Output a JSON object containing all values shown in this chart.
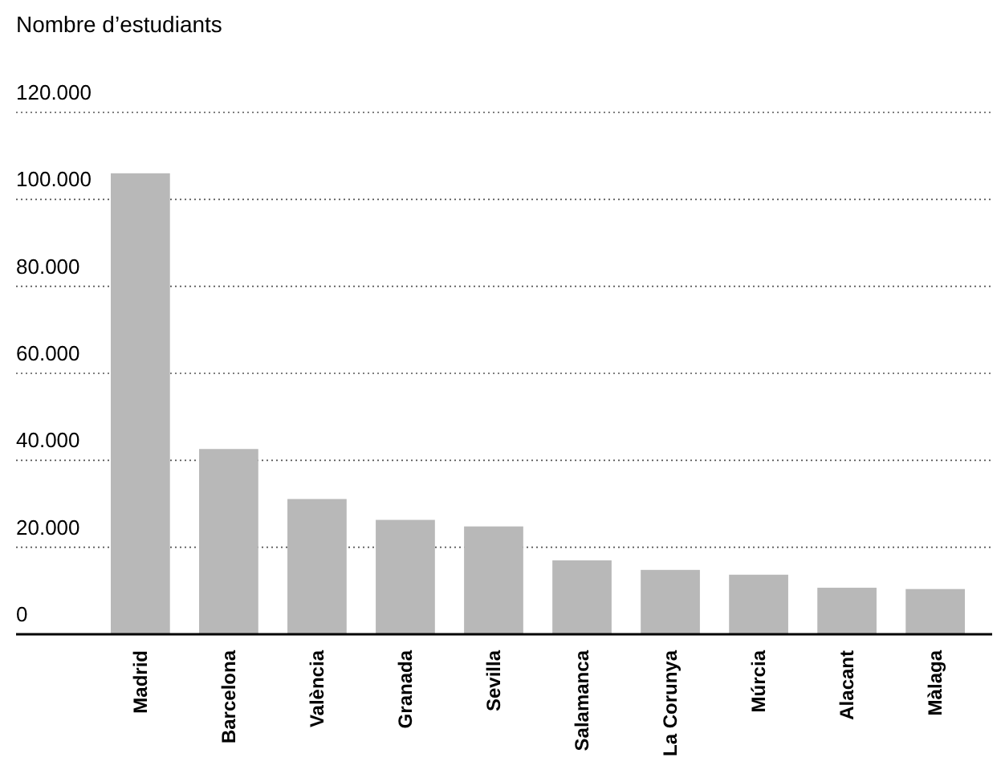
{
  "chart_data": {
    "type": "bar",
    "subtitle": "Nombre d’estudiants",
    "categories": [
      "Madrid",
      "Barcelona",
      "València",
      "Granada",
      "Sevilla",
      "Salamanca",
      "La Corunya",
      "Múrcia",
      "Alacant",
      "Màlaga"
    ],
    "values": [
      106000,
      42600,
      31100,
      26300,
      24800,
      17000,
      14800,
      13700,
      10700,
      10400
    ],
    "color": "#b8b8b8",
    "ylim": [
      0,
      120000
    ],
    "yticks": [
      {
        "value": 0,
        "label": "0"
      },
      {
        "value": 20000,
        "label": "20.000"
      },
      {
        "value": 40000,
        "label": "40.000"
      },
      {
        "value": 60000,
        "label": "60.000"
      },
      {
        "value": 80000,
        "label": "80.000"
      },
      {
        "value": 100000,
        "label": "100.000"
      },
      {
        "value": 120000,
        "label": "120.000"
      }
    ],
    "grid": "y"
  }
}
